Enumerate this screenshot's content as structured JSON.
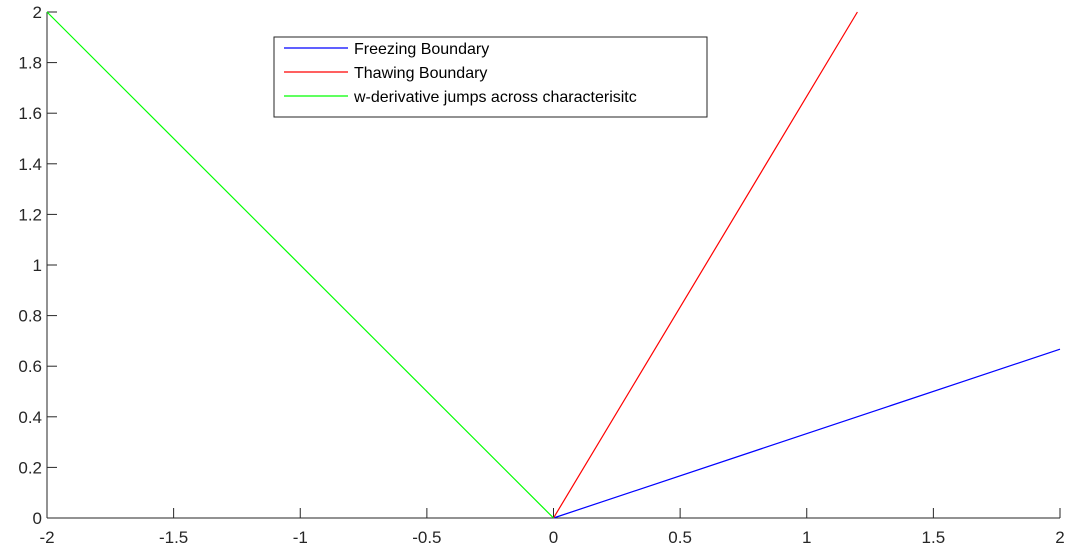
{
  "chart_data": {
    "type": "line",
    "title": "",
    "xlabel": "",
    "ylabel": "",
    "xlim": [
      -2,
      2
    ],
    "ylim": [
      0,
      2
    ],
    "xticks": [
      "-2",
      "-1.5",
      "-1",
      "-0.5",
      "0",
      "0.5",
      "1",
      "1.5",
      "2"
    ],
    "xtick_values": [
      -2,
      -1.5,
      -1,
      -0.5,
      0,
      0.5,
      1,
      1.5,
      2
    ],
    "yticks": [
      "0",
      "0.2",
      "0.4",
      "0.6",
      "0.8",
      "1",
      "1.2",
      "1.4",
      "1.6",
      "1.8",
      "2"
    ],
    "ytick_values": [
      0,
      0.2,
      0.4,
      0.6,
      0.8,
      1,
      1.2,
      1.4,
      1.6,
      1.8,
      2
    ],
    "grid": false,
    "legend_position": "top-center",
    "series": [
      {
        "name": "Freezing Boundary",
        "color": "#0000ff",
        "x": [
          0,
          2
        ],
        "y": [
          0,
          0.667
        ]
      },
      {
        "name": "Thawing Boundary",
        "color": "#ff0000",
        "x": [
          0,
          1.2
        ],
        "y": [
          0,
          2
        ]
      },
      {
        "name": "w-derivative jumps across characterisitc",
        "color": "#00ff00",
        "x": [
          -2,
          0
        ],
        "y": [
          2,
          0
        ]
      }
    ]
  }
}
